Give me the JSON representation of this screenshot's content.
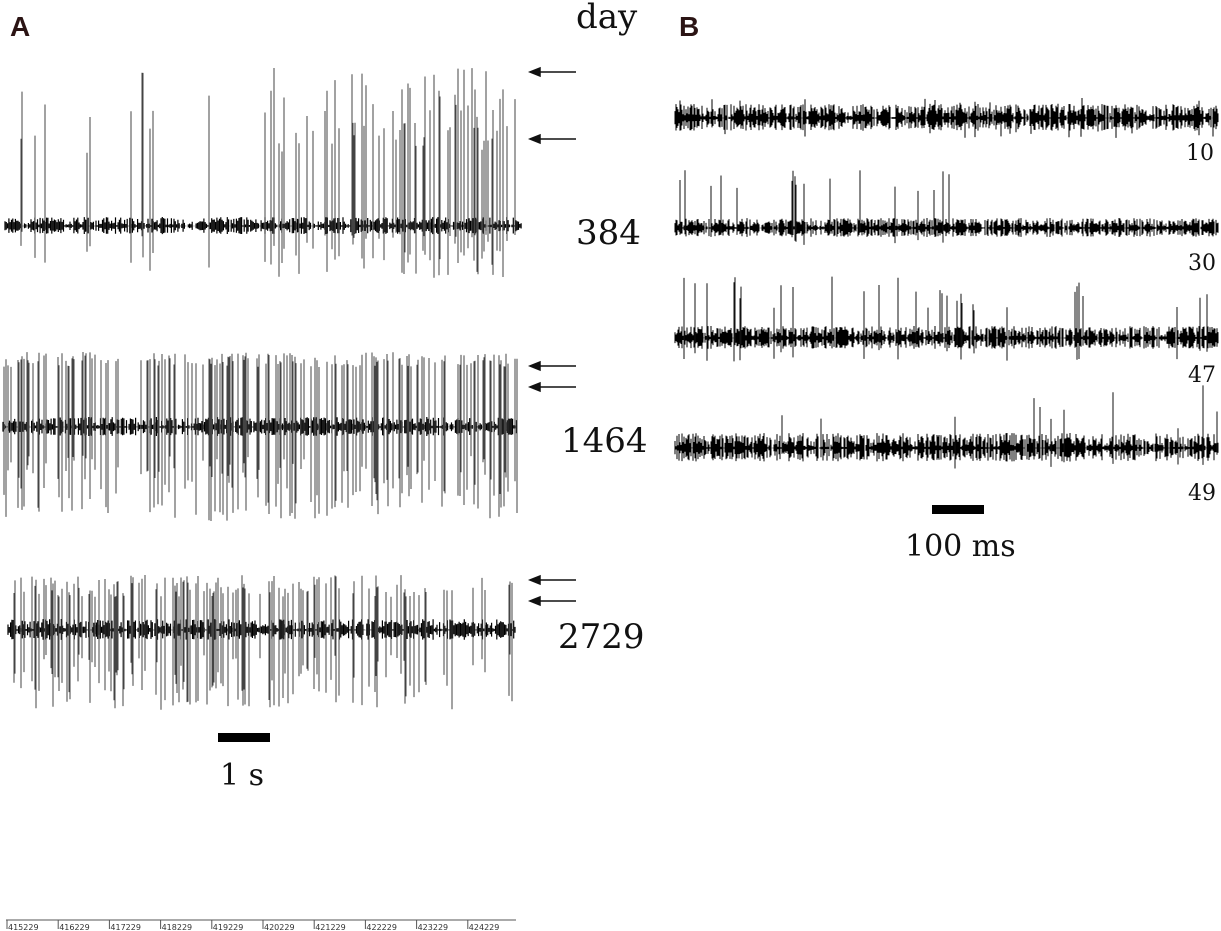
{
  "figure": {
    "panel_a_letter": "A",
    "panel_b_letter": "B",
    "day_header": "day"
  },
  "chart_data": [
    {
      "type": "line",
      "panel": "A",
      "traces": [
        {
          "day_label": "384"
        },
        {
          "day_label": "1464"
        },
        {
          "day_label": "2729"
        }
      ],
      "scale_bar_label": "1 s",
      "timeline_ticks": [
        "415229",
        "416229",
        "417229",
        "418229",
        "419229",
        "420229",
        "421229",
        "422229",
        "423229",
        "424229"
      ]
    },
    {
      "type": "line",
      "panel": "B",
      "traces": [
        {
          "day_label": "10"
        },
        {
          "day_label": "30"
        },
        {
          "day_label": "47"
        },
        {
          "day_label": "49"
        }
      ],
      "scale_bar_label": "100 ms"
    }
  ]
}
